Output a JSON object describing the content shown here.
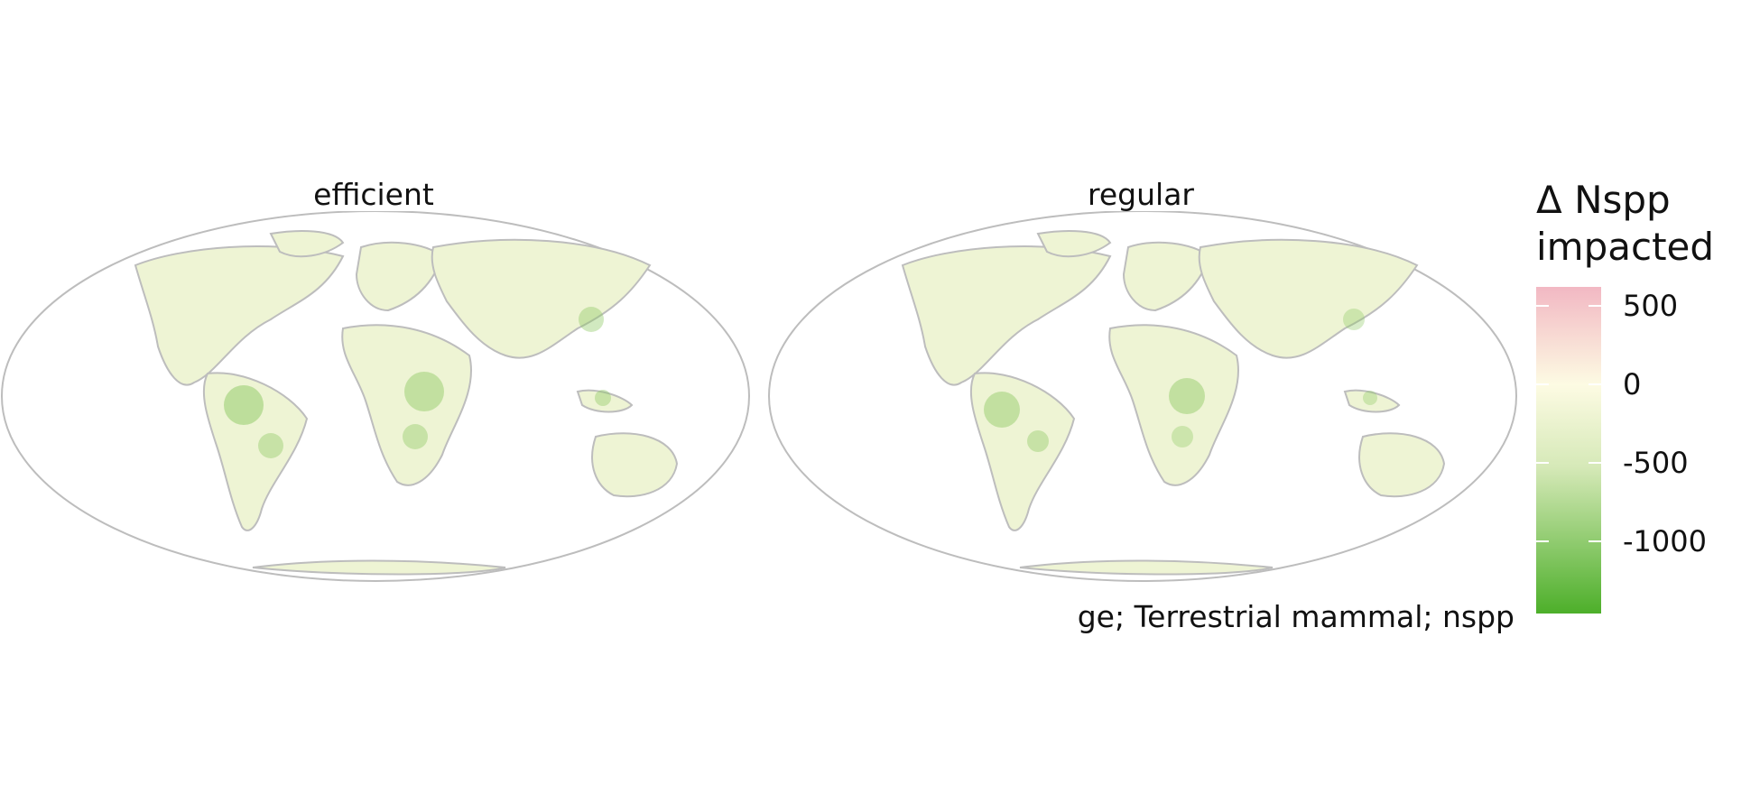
{
  "panels": [
    {
      "title": "efficient"
    },
    {
      "title": "regular"
    }
  ],
  "caption": "ge; Terrestrial mammal; nspp",
  "legend": {
    "title_line1": "Δ Nspp",
    "title_line2": "impacted",
    "ticks": [
      "500",
      "0",
      "-500",
      "-1000"
    ],
    "colors": {
      "high": "#f2b8c3",
      "mid": "#fdfbe3",
      "low": "#4daf2a"
    }
  },
  "map_colors": {
    "outline": "#bdbdbd",
    "land": "#eef4d4",
    "hotspot": "#8cc862"
  }
}
